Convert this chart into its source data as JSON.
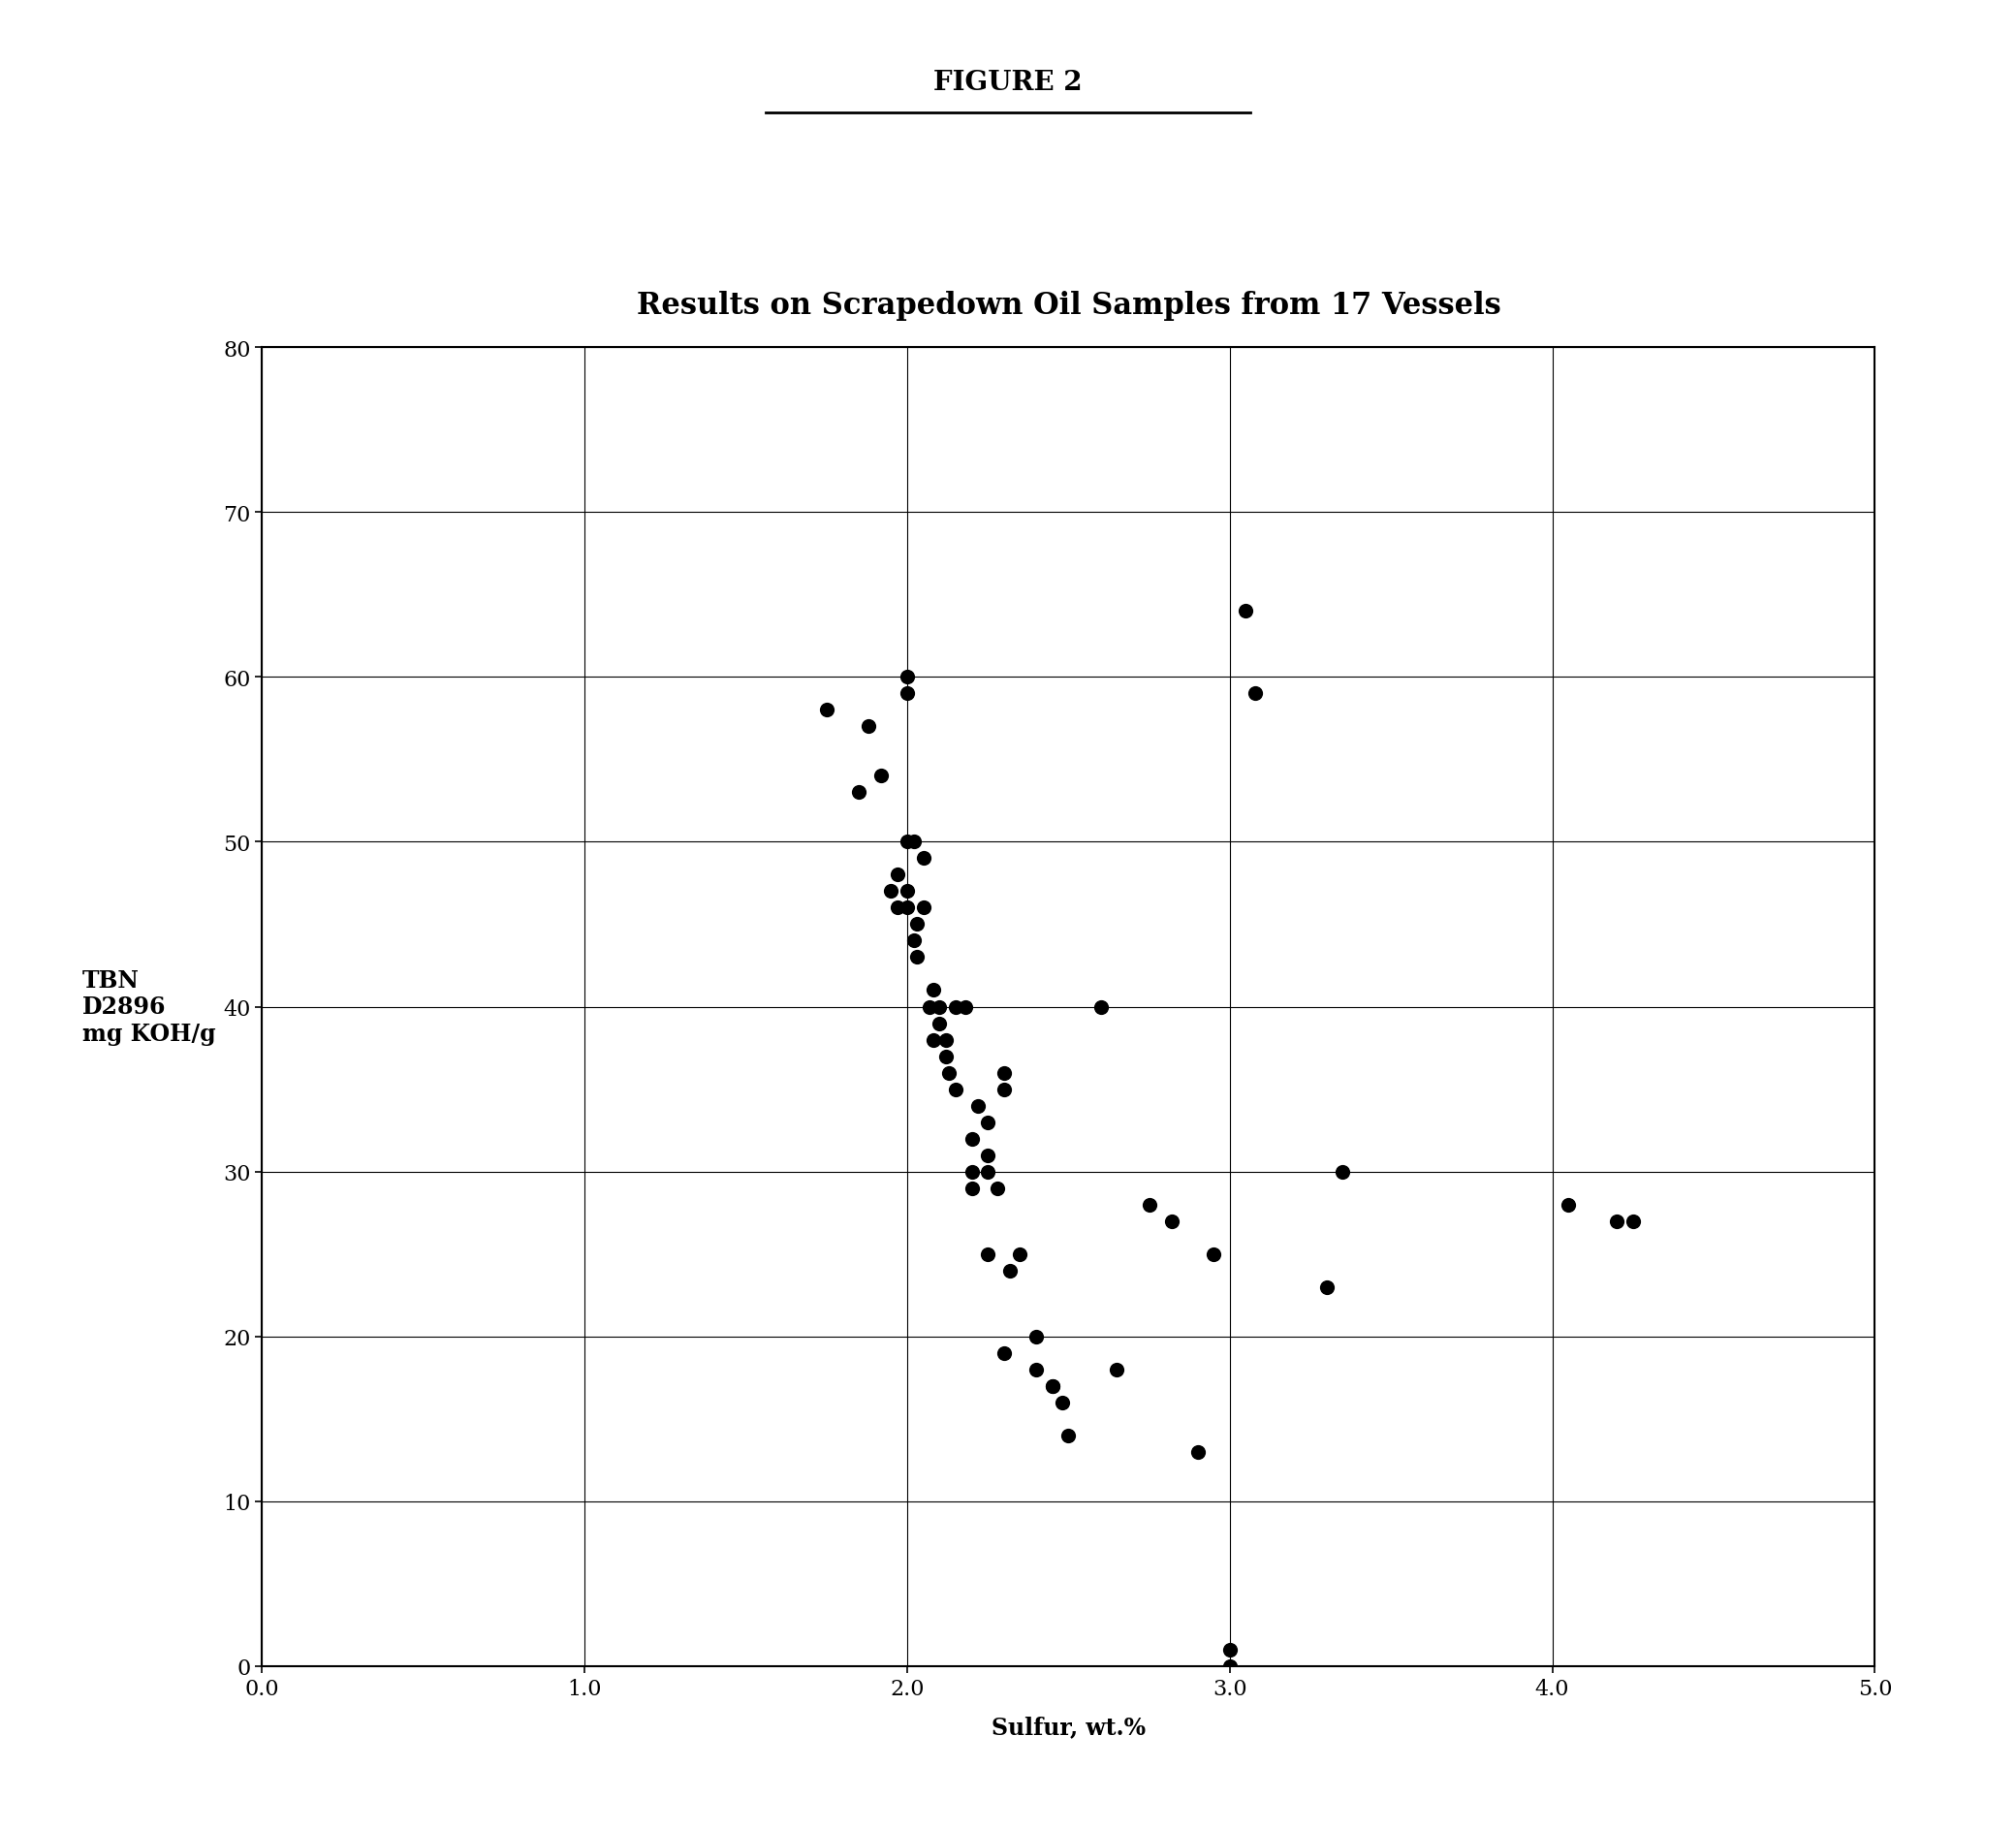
{
  "title": "Results on Scrapedown Oil Samples from 17 Vessels",
  "figure_label": "FIGURE 2",
  "xlabel": "Sulfur, wt.%",
  "ylabel": "TBN\nD2896\nmg KOH/g",
  "xlim": [
    0.0,
    5.0
  ],
  "ylim": [
    0,
    80
  ],
  "xticks": [
    0.0,
    1.0,
    2.0,
    3.0,
    4.0,
    5.0
  ],
  "yticks": [
    0,
    10,
    20,
    30,
    40,
    50,
    60,
    70,
    80
  ],
  "scatter_x": [
    1.75,
    1.85,
    1.88,
    1.92,
    1.95,
    1.97,
    1.97,
    2.0,
    2.0,
    2.0,
    2.0,
    2.0,
    2.02,
    2.02,
    2.03,
    2.03,
    2.05,
    2.05,
    2.07,
    2.08,
    2.08,
    2.1,
    2.1,
    2.12,
    2.12,
    2.13,
    2.15,
    2.15,
    2.18,
    2.2,
    2.2,
    2.2,
    2.22,
    2.25,
    2.25,
    2.25,
    2.25,
    2.28,
    2.3,
    2.3,
    2.3,
    2.32,
    2.35,
    2.4,
    2.4,
    2.45,
    2.45,
    2.48,
    2.5,
    2.6,
    2.65,
    2.75,
    2.82,
    2.9,
    2.95,
    3.0,
    3.0,
    3.05,
    3.08,
    3.3,
    3.35,
    4.05,
    4.2,
    4.25
  ],
  "scatter_y": [
    58,
    53,
    57,
    54,
    47,
    48,
    46,
    47,
    46,
    60,
    59,
    50,
    50,
    44,
    43,
    45,
    49,
    46,
    40,
    41,
    38,
    40,
    39,
    38,
    37,
    36,
    40,
    35,
    40,
    30,
    29,
    32,
    34,
    33,
    31,
    30,
    25,
    29,
    36,
    35,
    19,
    24,
    25,
    20,
    18,
    17,
    17,
    16,
    14,
    40,
    18,
    28,
    27,
    13,
    25,
    1,
    0,
    64,
    59,
    23,
    30,
    28,
    27,
    27
  ],
  "scatter_color": "#000000",
  "background_color": "#ffffff",
  "title_fontsize": 22,
  "label_fontsize": 17,
  "tick_fontsize": 16,
  "figure_label_fontsize": 20,
  "marker_size": 120
}
